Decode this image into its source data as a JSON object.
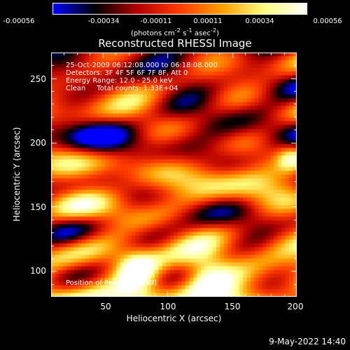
{
  "chart_data": {
    "type": "heatmap",
    "title": "Reconstructed RHESSI Image",
    "xlabel": "Heliocentric X (arcsec)",
    "ylabel": "Heliocentric Y (arcsec)",
    "xlim": [
      10,
      200
    ],
    "ylim": [
      80,
      270
    ],
    "x_ticks": [
      50,
      100,
      150,
      200
    ],
    "y_ticks": [
      100,
      150,
      200,
      250
    ],
    "colorbar": {
      "tick_labels": [
        "-0.00056",
        "-0.00034",
        "-0.00011",
        "0.00011",
        "0.00034",
        "0.00056"
      ],
      "units_prefix": "(photons cm",
      "units_exp1": "-2",
      "units_mid": " s",
      "units_exp2": "-1",
      "units_mid2": " asec",
      "units_exp3": "-2",
      "units_suffix": ")",
      "range": [
        -0.00056,
        0.00056
      ],
      "palette": [
        "#0000ff",
        "#000000",
        "#b40000",
        "#ff3c00",
        "#ffa000",
        "#ffff80",
        "#ffffff"
      ]
    },
    "annotations": [
      "25-Oct-2009 06:12:08.000 to 06:18:08.000",
      "Detectors: 3F 4F 5F 6F 7F 8F, Att 0",
      "Energy Range: 12.0 - 25.0 keV",
      "Clean     Total counts: 1.33E+04"
    ],
    "peak_label": "Position of Peak = [77,99]",
    "peak_position": [
      77,
      99
    ],
    "timestamp": "9-May-2022 14:40"
  }
}
